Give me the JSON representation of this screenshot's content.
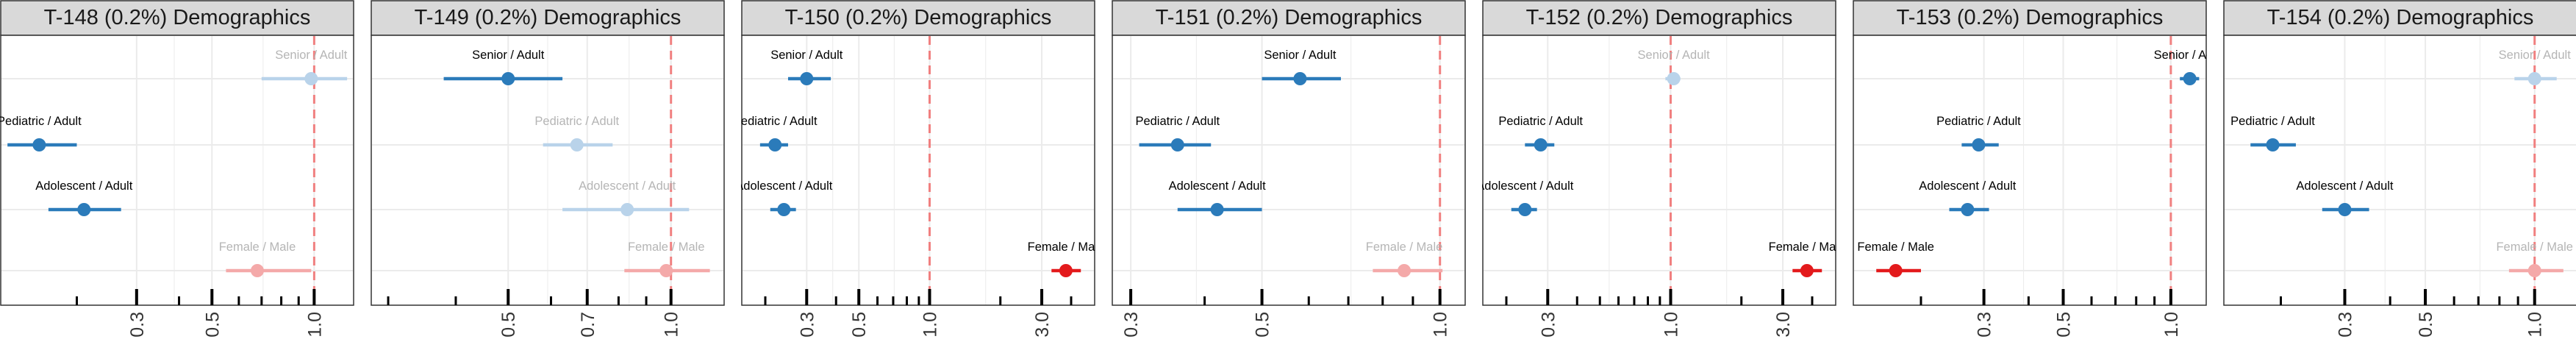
{
  "colors": {
    "strip_bg": "#d9d9d9",
    "frame": "#333333",
    "grid": "#ebebeb",
    "ref_line": "#f08080",
    "age_strong": "#2b7bba",
    "age_faded": "#b9d3ea",
    "sex_strong": "#e31a1c",
    "sex_faded": "#f4a9a9",
    "faded_label": "#b5b5b5"
  },
  "chart_data": [
    {
      "type": "forest",
      "title": "T-148 (0.2%) Demographics",
      "x_scale": "log",
      "xlim": [
        0.12,
        1.3
      ],
      "ticks": [
        0.3,
        0.5,
        1.0
      ],
      "tick_labels": [
        "0.3",
        "0.5",
        "1.0"
      ],
      "reference": 1.0,
      "grid": true,
      "rows": [
        {
          "label": "Senior / Adult",
          "est": 0.98,
          "lo": 0.7,
          "hi": 1.25,
          "group": "age",
          "faded": true
        },
        {
          "label": "Pediatric / Adult",
          "est": 0.155,
          "lo": 0.125,
          "hi": 0.2,
          "group": "age",
          "faded": false
        },
        {
          "label": "Adolescent / Adult",
          "est": 0.21,
          "lo": 0.165,
          "hi": 0.27,
          "group": "age",
          "faded": false
        },
        {
          "label": "Female / Male",
          "est": 0.68,
          "lo": 0.55,
          "hi": 0.98,
          "group": "sex",
          "faded": true
        }
      ]
    },
    {
      "type": "forest",
      "title": "T-149 (0.2%) Demographics",
      "x_scale": "log",
      "xlim": [
        0.28,
        1.25
      ],
      "ticks": [
        0.5,
        0.7,
        1.0
      ],
      "tick_labels": [
        "0.5",
        "0.7",
        "1.0"
      ],
      "reference": 1.0,
      "grid": true,
      "rows": [
        {
          "label": "Senior / Adult",
          "est": 0.5,
          "lo": 0.38,
          "hi": 0.63,
          "group": "age",
          "faded": false
        },
        {
          "label": "Pediatric / Adult",
          "est": 0.67,
          "lo": 0.58,
          "hi": 0.78,
          "group": "age",
          "faded": true
        },
        {
          "label": "Adolescent / Adult",
          "est": 0.83,
          "lo": 0.63,
          "hi": 1.08,
          "group": "age",
          "faded": true
        },
        {
          "label": "Female / Male",
          "est": 0.98,
          "lo": 0.82,
          "hi": 1.18,
          "group": "sex",
          "faded": true
        }
      ]
    },
    {
      "type": "forest",
      "title": "T-150 (0.2%) Demographics",
      "x_scale": "log",
      "xlim": [
        0.16,
        5.0
      ],
      "ticks": [
        0.3,
        0.5,
        1.0,
        3.0
      ],
      "tick_labels": [
        "0.3",
        "0.5",
        "1.0",
        "3.0"
      ],
      "reference": 1.0,
      "grid": true,
      "rows": [
        {
          "label": "Senior / Adult",
          "est": 0.3,
          "lo": 0.25,
          "hi": 0.38,
          "group": "age",
          "faded": false
        },
        {
          "label": "Pediatric / Adult",
          "est": 0.22,
          "lo": 0.19,
          "hi": 0.25,
          "group": "age",
          "faded": false
        },
        {
          "label": "Adolescent / Adult",
          "est": 0.24,
          "lo": 0.21,
          "hi": 0.27,
          "group": "age",
          "faded": false
        },
        {
          "label": "Female / Male",
          "est": 3.8,
          "lo": 3.3,
          "hi": 4.4,
          "group": "sex",
          "faded": false
        }
      ]
    },
    {
      "type": "forest",
      "title": "T-151 (0.2%) Demographics",
      "x_scale": "log",
      "xlim": [
        0.28,
        1.1
      ],
      "ticks": [
        0.3,
        0.5,
        1.0
      ],
      "tick_labels": [
        "0.3",
        "0.5",
        "1.0"
      ],
      "reference": 1.0,
      "grid": true,
      "rows": [
        {
          "label": "Senior / Adult",
          "est": 0.58,
          "lo": 0.5,
          "hi": 0.68,
          "group": "age",
          "faded": false
        },
        {
          "label": "Pediatric / Adult",
          "est": 0.36,
          "lo": 0.31,
          "hi": 0.41,
          "group": "age",
          "faded": false
        },
        {
          "label": "Adolescent / Adult",
          "est": 0.42,
          "lo": 0.36,
          "hi": 0.5,
          "group": "age",
          "faded": false
        },
        {
          "label": "Female / Male",
          "est": 0.87,
          "lo": 0.77,
          "hi": 1.01,
          "group": "sex",
          "faded": true
        }
      ]
    },
    {
      "type": "forest",
      "title": "T-152 (0.2%) Demographics",
      "x_scale": "log",
      "xlim": [
        0.16,
        5.0
      ],
      "ticks": [
        0.3,
        1.0,
        3.0
      ],
      "tick_labels": [
        "0.3",
        "1.0",
        "3.0"
      ],
      "reference": 1.0,
      "grid": true,
      "rows": [
        {
          "label": "Senior / Adult",
          "est": 1.03,
          "lo": 0.95,
          "hi": 1.1,
          "group": "age",
          "faded": true
        },
        {
          "label": "Pediatric / Adult",
          "est": 0.28,
          "lo": 0.24,
          "hi": 0.32,
          "group": "age",
          "faded": false
        },
        {
          "label": "Adolescent / Adult",
          "est": 0.24,
          "lo": 0.21,
          "hi": 0.27,
          "group": "age",
          "faded": false
        },
        {
          "label": "Female / Male",
          "est": 3.8,
          "lo": 3.3,
          "hi": 4.4,
          "group": "sex",
          "faded": false
        }
      ]
    },
    {
      "type": "forest",
      "title": "T-153 (0.2%) Demographics",
      "x_scale": "log",
      "xlim": [
        0.13,
        1.25
      ],
      "ticks": [
        0.3,
        0.5,
        1.0
      ],
      "tick_labels": [
        "0.3",
        "0.5",
        "1.0"
      ],
      "reference": 1.0,
      "grid": true,
      "rows": [
        {
          "label": "Senior / Adult",
          "est": 1.13,
          "lo": 1.06,
          "hi": 1.2,
          "group": "age",
          "faded": false
        },
        {
          "label": "Pediatric / Adult",
          "est": 0.29,
          "lo": 0.26,
          "hi": 0.33,
          "group": "age",
          "faded": false
        },
        {
          "label": "Adolescent / Adult",
          "est": 0.27,
          "lo": 0.24,
          "hi": 0.31,
          "group": "age",
          "faded": false
        },
        {
          "label": "Female / Male",
          "est": 0.17,
          "lo": 0.15,
          "hi": 0.2,
          "group": "sex",
          "faded": false
        }
      ]
    },
    {
      "type": "forest",
      "title": "T-154 (0.2%) Demographics",
      "x_scale": "log",
      "xlim": [
        0.14,
        1.3
      ],
      "ticks": [
        0.3,
        0.5,
        1.0
      ],
      "tick_labels": [
        "0.3",
        "0.5",
        "1.0"
      ],
      "reference": 1.0,
      "grid": true,
      "rows": [
        {
          "label": "Senior / Adult",
          "est": 1.0,
          "lo": 0.88,
          "hi": 1.15,
          "group": "age",
          "faded": true
        },
        {
          "label": "Pediatric / Adult",
          "est": 0.19,
          "lo": 0.165,
          "hi": 0.22,
          "group": "age",
          "faded": false
        },
        {
          "label": "Adolescent / Adult",
          "est": 0.3,
          "lo": 0.26,
          "hi": 0.35,
          "group": "age",
          "faded": false
        },
        {
          "label": "Female / Male",
          "est": 1.0,
          "lo": 0.85,
          "hi": 1.2,
          "group": "sex",
          "faded": true
        }
      ]
    }
  ]
}
